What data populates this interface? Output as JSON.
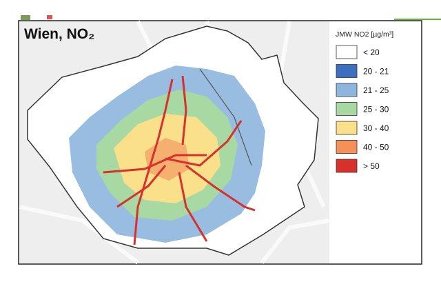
{
  "map": {
    "title": "Wien, NO₂",
    "legend": {
      "title": "JMW NO2 [µg/m³]",
      "items": [
        {
          "label": "< 20",
          "color": "#ffffff"
        },
        {
          "label": "20 - 21",
          "color": "#3d6fc1"
        },
        {
          "label": "21 - 25",
          "color": "#8db6de"
        },
        {
          "label": "25 - 30",
          "color": "#a8d9a2"
        },
        {
          "label": "30 - 40",
          "color": "#fbe08c"
        },
        {
          "label": "40 - 50",
          "color": "#f59158"
        },
        {
          "label": "> 50",
          "color": "#d8302a"
        }
      ]
    }
  }
}
